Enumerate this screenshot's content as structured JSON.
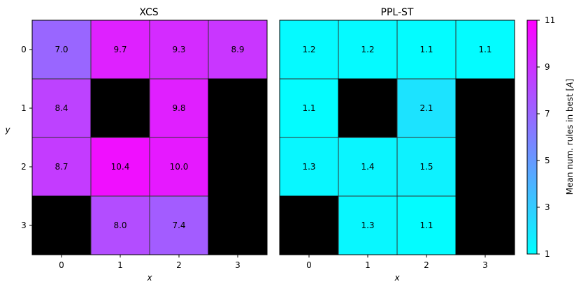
{
  "chart_data": {
    "type": "heatmap",
    "colormap": "cool",
    "empty_cell_color": "#000000",
    "colorbar": {
      "label": "Mean num. rules in best [",
      "label_symbol": "A",
      "label_end": "]",
      "range": [
        1,
        11
      ],
      "ticks": [
        "1",
        "3",
        "5",
        "7",
        "9",
        "11"
      ]
    },
    "axes": {
      "ylabel": "y",
      "xlabel": "x",
      "x_ticks": [
        "0",
        "1",
        "2",
        "3"
      ],
      "y_ticks": [
        "0",
        "1",
        "2",
        "3"
      ]
    },
    "panels": [
      {
        "title": "XCS",
        "values": [
          [
            7.0,
            9.7,
            9.3,
            8.9
          ],
          [
            8.4,
            null,
            9.8,
            null
          ],
          [
            8.7,
            10.4,
            10.0,
            null
          ],
          [
            null,
            8.0,
            7.4,
            null
          ]
        ],
        "labels": [
          [
            "7.0",
            "9.7",
            "9.3",
            "8.9"
          ],
          [
            "8.4",
            "",
            "9.8",
            ""
          ],
          [
            "8.7",
            "10.4",
            "10.0",
            ""
          ],
          [
            "",
            "8.0",
            "7.4",
            ""
          ]
        ]
      },
      {
        "title": "PPL-ST",
        "values": [
          [
            1.2,
            1.2,
            1.1,
            1.1
          ],
          [
            1.1,
            null,
            2.1,
            null
          ],
          [
            1.3,
            1.4,
            1.5,
            null
          ],
          [
            null,
            1.3,
            1.1,
            null
          ]
        ],
        "labels": [
          [
            "1.2",
            "1.2",
            "1.1",
            "1.1"
          ],
          [
            "1.1",
            "",
            "2.1",
            ""
          ],
          [
            "1.3",
            "1.4",
            "1.5",
            ""
          ],
          [
            "",
            "1.3",
            "1.1",
            ""
          ]
        ]
      }
    ]
  }
}
